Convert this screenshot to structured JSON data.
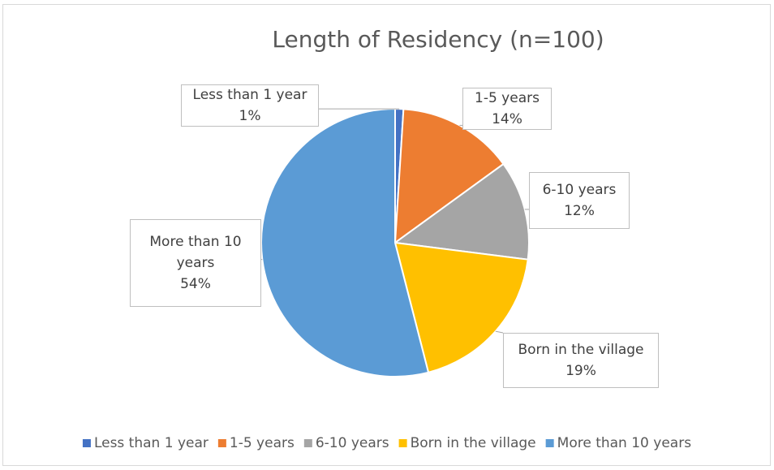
{
  "chart_data": {
    "type": "pie",
    "title": "Length of Residency (n=100)",
    "categories": [
      "Less than 1 year",
      "1-5 years",
      "6-10 years",
      "Born in the village",
      "More than 10 years"
    ],
    "values": [
      1,
      14,
      12,
      19,
      54
    ],
    "value_labels": [
      "1%",
      "14%",
      "12%",
      "19%",
      "54%"
    ],
    "colors": [
      "#4472c4",
      "#ed7d31",
      "#a5a5a5",
      "#ffc000",
      "#5b9bd5"
    ],
    "legend": "bottom"
  }
}
